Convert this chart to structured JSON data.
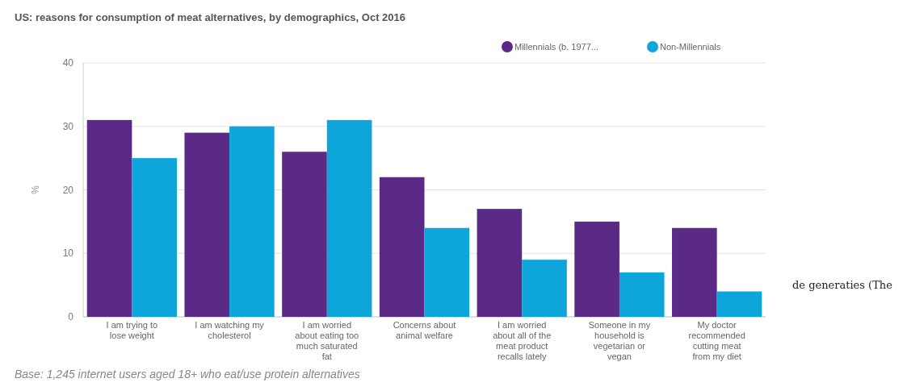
{
  "chart_data": {
    "type": "bar",
    "title": "US: reasons for consumption of meat alternatives, by demographics, Oct 2016",
    "categories": [
      "I am trying to lose weight",
      "I am watching my cholesterol",
      "I am worried about eating too much saturated fat",
      "Concerns about animal welfare",
      "I am worried about all of the meat product recalls lately",
      "Someone in my household is vegetarian or vegan",
      "My doctor recommended cutting meat from my diet"
    ],
    "series": [
      {
        "name": "Millennials (b. 1977...",
        "color": "#5b2a86",
        "values": [
          31,
          29,
          26,
          22,
          17,
          15,
          14
        ]
      },
      {
        "name": "Non-Millennials",
        "color": "#0ea5db",
        "values": [
          25,
          30,
          31,
          14,
          9,
          7,
          4
        ]
      }
    ],
    "ylabel": "%",
    "ylim": [
      0,
      40
    ],
    "yticks": [
      0,
      10,
      20,
      30,
      40
    ],
    "grid": "y",
    "legend": "top right",
    "annotations": [
      "Base: 1,245 internet users aged 18+ who eat/use protein alternatives",
      "de generaties (The"
    ]
  }
}
